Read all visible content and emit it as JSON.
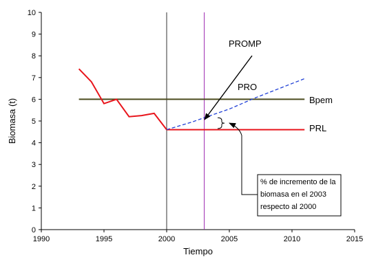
{
  "chart_data": {
    "type": "line",
    "xlabel": "Tiempo",
    "ylabel": "Biomasa (t)",
    "xlim": [
      1990,
      2015
    ],
    "ylim": [
      0,
      10
    ],
    "xticks": [
      1990,
      1995,
      2000,
      2005,
      2010,
      2015
    ],
    "yticks": [
      0,
      1,
      2,
      3,
      4,
      5,
      6,
      7,
      8,
      9,
      10
    ],
    "grid": false,
    "series": [
      {
        "name": "Bpem",
        "color": "#4a4a1c",
        "style": "solid",
        "x": [
          1993,
          2011
        ],
        "y": [
          6.0,
          6.0
        ]
      },
      {
        "name": "PRL",
        "color": "#e8141b",
        "style": "solid",
        "x": [
          1993,
          1994,
          1995,
          1996,
          1997,
          1998,
          1999,
          2000,
          2001,
          2002,
          2003,
          2004,
          2005,
          2006,
          2007,
          2008,
          2009,
          2010,
          2011
        ],
        "y": [
          7.4,
          6.8,
          5.8,
          6.0,
          5.2,
          5.25,
          5.35,
          4.6,
          4.6,
          4.6,
          4.6,
          4.6,
          4.6,
          4.6,
          4.6,
          4.6,
          4.6,
          4.6,
          4.6
        ]
      },
      {
        "name": "PRO",
        "color": "#1f3fd6",
        "style": "dashed",
        "x": [
          2000,
          2002,
          2004,
          2005,
          2007,
          2009,
          2011
        ],
        "y": [
          4.6,
          4.95,
          5.35,
          5.55,
          6.05,
          6.5,
          6.95
        ]
      }
    ],
    "vlines": [
      {
        "x": 2000,
        "color": "#333333"
      },
      {
        "x": 2003,
        "color": "#9c27b0"
      }
    ],
    "annotations": {
      "promp_label": "PROMP",
      "pro_label": "PRO",
      "bpem_label": "Bpem",
      "prl_label": "PRL",
      "note_lines": [
        "% de incremento de la",
        "biomasa en el 2003",
        "respecto al 2000"
      ]
    }
  }
}
